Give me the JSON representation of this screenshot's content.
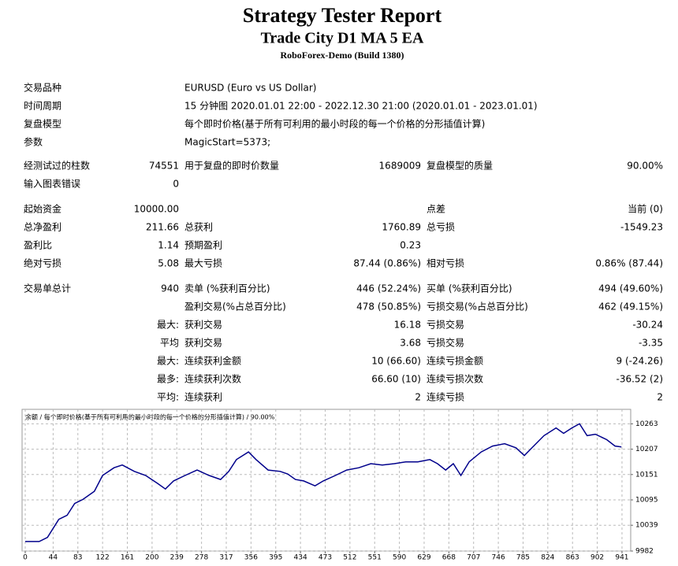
{
  "header": {
    "title": "Strategy Tester Report",
    "subtitle": "Trade City D1 MA 5 EA",
    "server": "RoboForex-Demo (Build 1380)"
  },
  "info": [
    {
      "label": "交易品种",
      "value": "EURUSD (Euro vs US Dollar)"
    },
    {
      "label": "时间周期",
      "value": "15 分钟图 2020.01.01 22:00 - 2022.12.30 21:00 (2020.01.01 - 2023.01.01)"
    },
    {
      "label": "复盘模型",
      "value": "每个即时价格(基于所有可利用的最小时段的每一个价格的分形插值计算)"
    },
    {
      "label": "参数",
      "value": "MagicStart=5373;"
    }
  ],
  "stats": [
    [
      {
        "l1": "经测试过的柱数",
        "v1": "74551",
        "l2": "用于复盘的即时价数量",
        "v2": "1689009",
        "l3": "复盘模型的质量",
        "v3": "90.00%"
      },
      {
        "l1": "输入图表错误",
        "v1": "0"
      }
    ],
    [
      {
        "l1": "起始资金",
        "v1": "10000.00",
        "l3": "点差",
        "v3": "当前 (0)"
      },
      {
        "l1": "总净盈利",
        "v1": "211.66",
        "l2": "总获利",
        "v2": "1760.89",
        "l3": "总亏损",
        "v3": "-1549.23"
      },
      {
        "l1": "盈利比",
        "v1": "1.14",
        "l2": "预期盈利",
        "v2": "0.23"
      },
      {
        "l1": "绝对亏损",
        "v1": "5.08",
        "l2": "最大亏损",
        "v2": "87.44 (0.86%)",
        "l3": "相对亏损",
        "v3": "0.86% (87.44)"
      }
    ],
    [
      {
        "l1": "交易单总计",
        "v1": "940",
        "l2": "卖单 (%获利百分比)",
        "v2": "446 (52.24%)",
        "l3": "买单 (%获利百分比)",
        "v3": "494 (49.60%)"
      },
      {
        "l2": "盈利交易(%占总百分比)",
        "v2": "478 (50.85%)",
        "l3": "亏损交易(%占总百分比)",
        "v3": "462 (49.15%)"
      },
      {
        "v1": "最大:",
        "l2": "获利交易",
        "v2": "16.18",
        "l3": "亏损交易",
        "v3": "-30.24"
      },
      {
        "v1": "平均",
        "l2": "获利交易",
        "v2": "3.68",
        "l3": "亏损交易",
        "v3": "-3.35"
      },
      {
        "v1": "最大:",
        "l2": "连续获利金额",
        "v2": "10 (66.60)",
        "l3": "连续亏损金额",
        "v3": "9 (-24.26)"
      },
      {
        "v1": "最多:",
        "l2": "连续获利次数",
        "v2": "66.60 (10)",
        "l3": "连续亏损次数",
        "v3": "-36.52 (2)"
      },
      {
        "v1": "平均:",
        "l2": "连续获利",
        "v2": "2",
        "l3": "连续亏损",
        "v3": "2"
      }
    ]
  ],
  "chart_data": {
    "type": "line",
    "title": "余额 / 每个即时价格(基于所有可利用的最小时段的每一个价格的分形插值计算) / 90.00%",
    "x": [
      0,
      22,
      35,
      53,
      66,
      78,
      91,
      109,
      122,
      140,
      153,
      172,
      190,
      209,
      221,
      234,
      252,
      271,
      290,
      308,
      321,
      333,
      352,
      364,
      383,
      402,
      414,
      426,
      439,
      457,
      470,
      489,
      507,
      526,
      545,
      563,
      582,
      600,
      619,
      638,
      650,
      663,
      675,
      687,
      700,
      719,
      737,
      756,
      774,
      787,
      799,
      818,
      837,
      849,
      862,
      874,
      886,
      899,
      917,
      930,
      940
    ],
    "series": [
      {
        "color": "#00008b",
        "values": [
          10003,
          10003,
          10012,
          10052,
          10061,
          10087,
          10096,
          10114,
          10149,
          10166,
          10172,
          10158,
          10149,
          10131,
          10119,
          10137,
          10149,
          10161,
          10149,
          10140,
          10158,
          10184,
          10201,
          10184,
          10161,
          10158,
          10152,
          10140,
          10137,
          10126,
          10137,
          10149,
          10161,
          10166,
          10175,
          10172,
          10175,
          10179,
          10179,
          10184,
          10175,
          10161,
          10175,
          10149,
          10179,
          10201,
          10214,
          10219,
          10210,
          10193,
          10210,
          10237,
          10254,
          10242,
          10254,
          10263,
          10237,
          10240,
          10228,
          10214,
          10212
        ]
      }
    ],
    "xlim": [
      0,
      951
    ],
    "ylim": [
      9982,
      10295
    ],
    "xticks": [
      0,
      44,
      83,
      122,
      161,
      200,
      239,
      278,
      317,
      356,
      395,
      434,
      473,
      512,
      551,
      590,
      629,
      668,
      707,
      746,
      785,
      824,
      863,
      902,
      941
    ],
    "yticks": [
      9982,
      10039,
      10095,
      10151,
      10207,
      10263
    ],
    "grid": true
  }
}
